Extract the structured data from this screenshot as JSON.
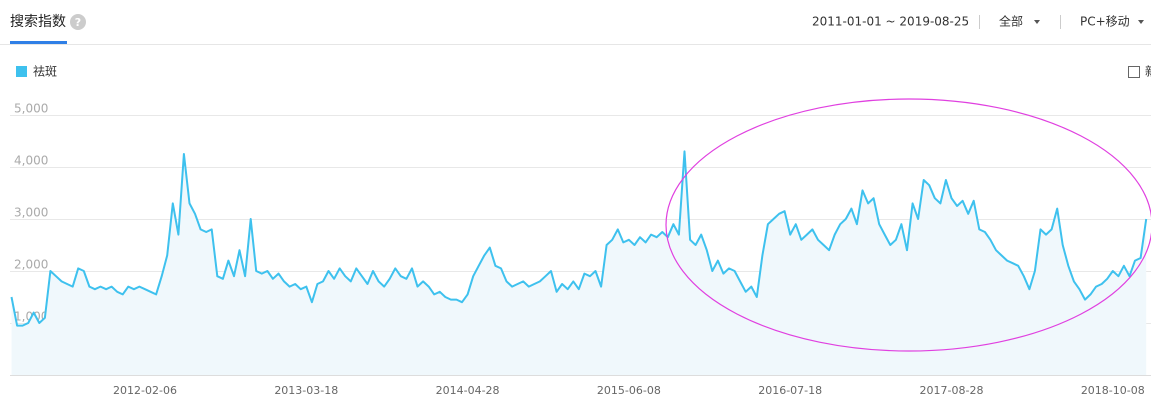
{
  "toolbar": {
    "title": "搜索指数",
    "help_icon": "?",
    "date_range": "2011-01-01 ~ 2019-08-25",
    "region_select": "全部",
    "device_select": "PC+移动",
    "checkbox_label": "新"
  },
  "chart_data": {
    "type": "line",
    "grid": true,
    "categories": [
      null,
      null,
      null,
      null,
      null,
      null,
      null,
      null,
      null,
      null,
      null,
      null,
      null,
      null,
      null,
      null,
      null,
      null,
      null,
      null,
      null,
      null,
      null,
      null,
      "2012-02-06",
      null,
      null,
      null,
      null,
      null,
      null,
      null,
      null,
      null,
      null,
      null,
      null,
      null,
      null,
      null,
      null,
      null,
      null,
      null,
      null,
      null,
      null,
      null,
      null,
      null,
      null,
      null,
      null,
      "2013-03-18",
      null,
      null,
      null,
      null,
      null,
      null,
      null,
      null,
      null,
      null,
      null,
      null,
      null,
      null,
      null,
      null,
      null,
      null,
      null,
      null,
      null,
      null,
      null,
      null,
      null,
      null,
      null,
      null,
      "2014-04-28",
      null,
      null,
      null,
      null,
      null,
      null,
      null,
      null,
      null,
      null,
      null,
      null,
      null,
      null,
      null,
      null,
      null,
      null,
      null,
      null,
      null,
      null,
      null,
      null,
      null,
      null,
      null,
      null,
      "2015-06-08",
      null,
      null,
      null,
      null,
      null,
      null,
      null,
      null,
      null,
      null,
      null,
      null,
      null,
      null,
      null,
      null,
      null,
      null,
      null,
      null,
      null,
      null,
      null,
      null,
      null,
      null,
      null,
      null,
      "2016-07-18",
      null,
      null,
      null,
      null,
      null,
      null,
      null,
      null,
      null,
      null,
      null,
      null,
      null,
      null,
      null,
      null,
      null,
      null,
      null,
      null,
      null,
      null,
      null,
      null,
      null,
      null,
      null,
      null,
      "2017-08-28",
      null,
      null,
      null,
      null,
      null,
      null,
      null,
      null,
      null,
      null,
      null,
      null,
      null,
      null,
      null,
      null,
      null,
      null,
      null,
      null,
      null,
      null,
      null,
      null,
      null,
      null,
      null,
      null,
      "2018-10-08",
      null,
      null,
      null,
      null,
      null,
      null
    ],
    "series": [
      {
        "name": "祛斑",
        "color": "#3ec1ee",
        "fill": "#f0f8fc",
        "values": [
          1500,
          950,
          950,
          1000,
          1200,
          1000,
          1100,
          2000,
          1900,
          1800,
          1750,
          1700,
          2050,
          2000,
          1700,
          1650,
          1700,
          1650,
          1700,
          1600,
          1550,
          1700,
          1650,
          1700,
          1650,
          1600,
          1550,
          1900,
          2300,
          3300,
          2700,
          4250,
          3300,
          3100,
          2800,
          2750,
          2800,
          1900,
          1850,
          2200,
          1900,
          2400,
          1900,
          3000,
          2000,
          1950,
          2000,
          1850,
          1950,
          1800,
          1700,
          1750,
          1650,
          1700,
          1400,
          1750,
          1800,
          2000,
          1850,
          2050,
          1900,
          1800,
          2050,
          1900,
          1750,
          2000,
          1800,
          1700,
          1850,
          2050,
          1900,
          1850,
          2050,
          1700,
          1800,
          1700,
          1550,
          1600,
          1500,
          1450,
          1450,
          1400,
          1550,
          1900,
          2100,
          2300,
          2450,
          2100,
          2050,
          1800,
          1700,
          1750,
          1800,
          1700,
          1750,
          1800,
          1900,
          2000,
          1600,
          1750,
          1650,
          1800,
          1650,
          1950,
          1900,
          2000,
          1700,
          2500,
          2600,
          2800,
          2550,
          2600,
          2500,
          2650,
          2550,
          2700,
          2650,
          2750,
          2650,
          2900,
          2700,
          4300,
          2600,
          2500,
          2700,
          2400,
          2000,
          2200,
          1950,
          2050,
          2000,
          1800,
          1600,
          1700,
          1500,
          2300,
          2900,
          3000,
          3100,
          3150,
          2700,
          2900,
          2600,
          2700,
          2800,
          2600,
          2500,
          2400,
          2700,
          2900,
          3000,
          3200,
          2900,
          3550,
          3300,
          3400,
          2900,
          2700,
          2500,
          2600,
          2900,
          2400,
          3300,
          3000,
          3750,
          3650,
          3400,
          3300,
          3750,
          3400,
          3250,
          3350,
          3100,
          3350,
          2800,
          2750,
          2600,
          2400,
          2300,
          2200,
          2150,
          2100,
          1900,
          1650,
          2000,
          2800,
          2700,
          2800,
          3200,
          2500,
          2100,
          1800,
          1650,
          1450,
          1550,
          1700,
          1750,
          1850,
          2000,
          1900,
          2100,
          1900,
          2200,
          2250,
          3000
        ]
      }
    ],
    "ylim": [
      0,
      5000
    ],
    "yticks": [
      {
        "value": 1000,
        "label": "1,000"
      },
      {
        "value": 2000,
        "label": "2,000"
      },
      {
        "value": 3000,
        "label": "3,000"
      },
      {
        "value": 4000,
        "label": "4,000"
      },
      {
        "value": 5000,
        "label": "5,000"
      }
    ]
  }
}
